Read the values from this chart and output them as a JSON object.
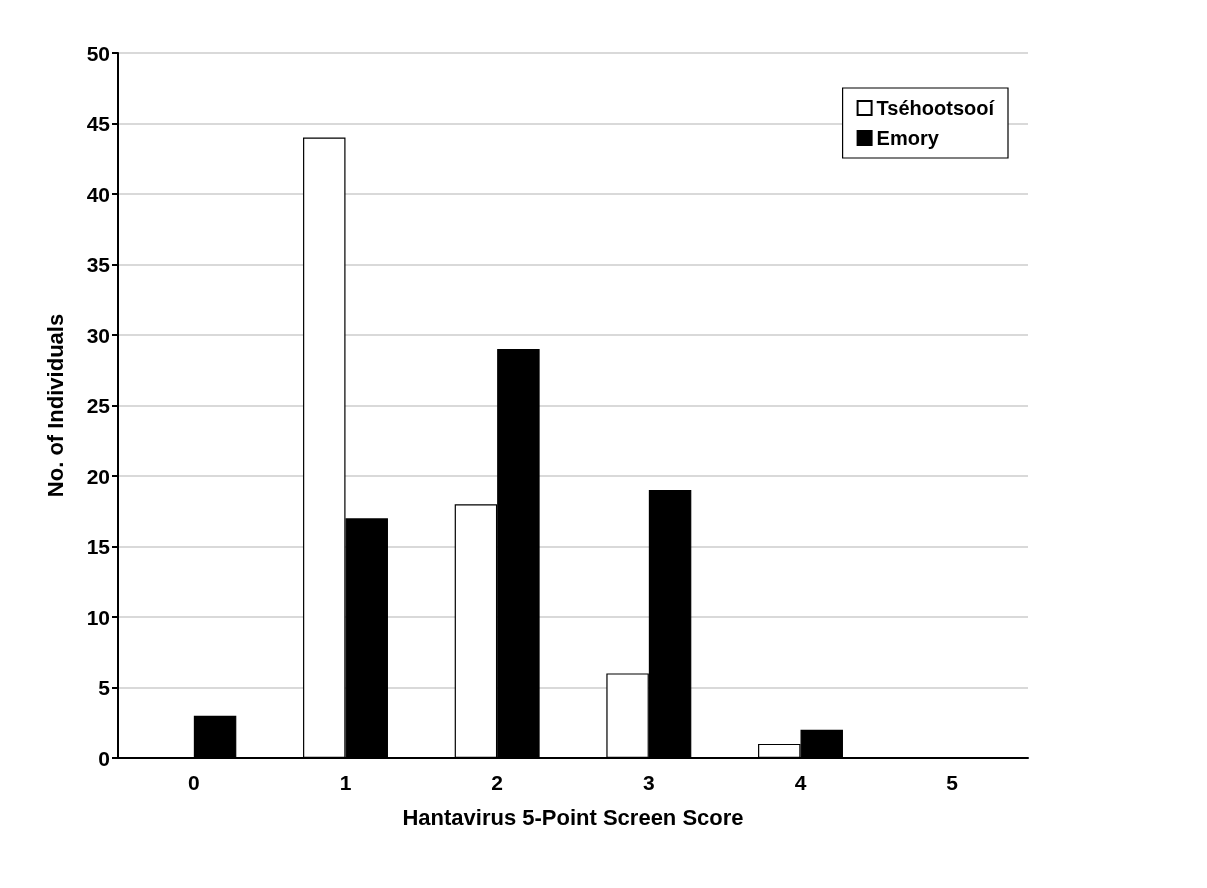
{
  "chart_data": {
    "type": "bar",
    "xlabel": "Hantavirus 5-Point Screen Score",
    "ylabel": "No. of Individuals",
    "categories": [
      "0",
      "1",
      "2",
      "3",
      "4",
      "5"
    ],
    "series": [
      {
        "name": "Tséhootsooí",
        "color": "#ffffff",
        "values": [
          0,
          44,
          18,
          6,
          1,
          0
        ]
      },
      {
        "name": "Emory",
        "color": "#000000",
        "values": [
          3,
          17,
          29,
          19,
          2,
          0
        ]
      }
    ],
    "ylim": [
      0,
      50
    ],
    "yticks": [
      0,
      5,
      10,
      15,
      20,
      25,
      30,
      35,
      40,
      45,
      50
    ],
    "grid": "y",
    "legend": "top right"
  }
}
